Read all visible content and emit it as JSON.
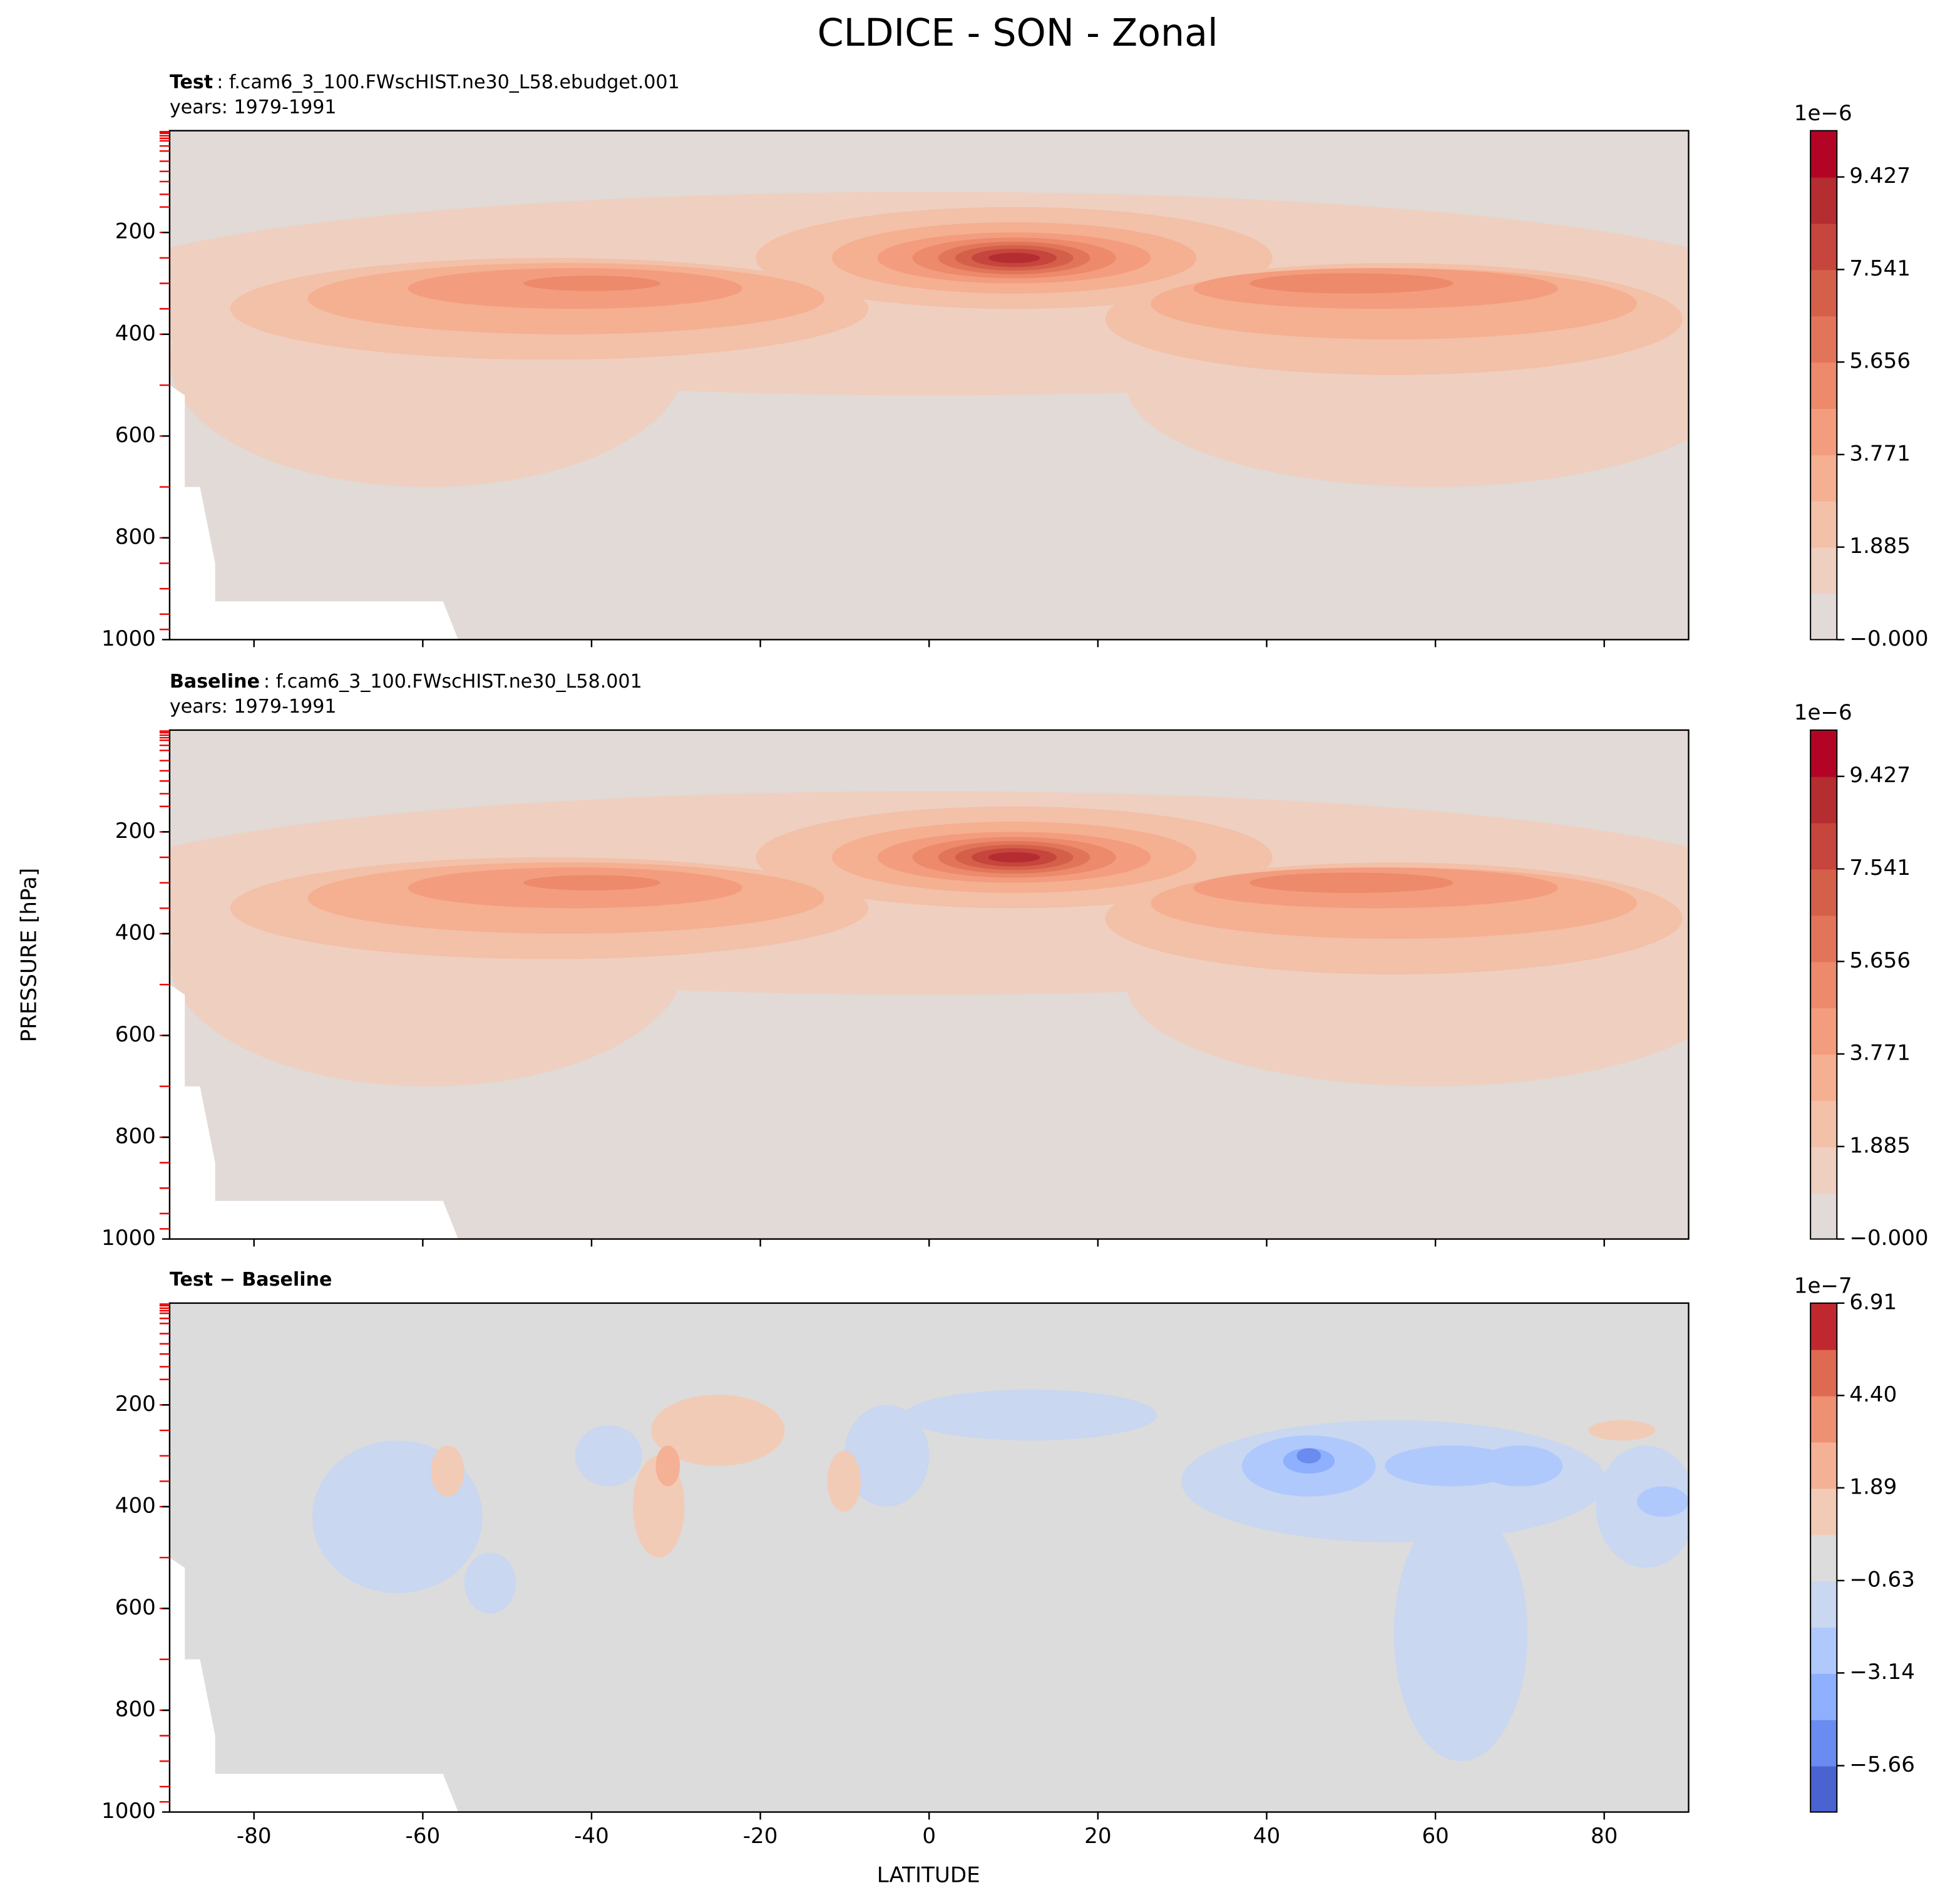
{
  "title": "CLDICE - SON - Zonal",
  "ylabel": "PRESSURE [hPa]",
  "xlabel": "LATITUDE",
  "chart_data": [
    {
      "type": "contour",
      "label_bold": "Test",
      "label_text": ": f.cam6_3_100.FWscHIST.ne30_L58.ebudget.001",
      "subtitle": "years: 1979-1991",
      "xlim": [
        -90,
        90
      ],
      "xticks": [
        -80,
        -60,
        -40,
        -20,
        0,
        20,
        40,
        60,
        80
      ],
      "show_xtick_labels": false,
      "ylim": [
        1000,
        0
      ],
      "yticks": [
        200,
        400,
        600,
        800,
        1000
      ],
      "colorbar": {
        "offset": "1e−6",
        "lim": [
          0,
          10.37
        ],
        "ticks": [
          {
            "value": 0,
            "label": "−0.000"
          },
          1.885,
          3.771,
          5.656,
          7.541,
          9.427
        ],
        "colors": [
          "#e1dad6",
          "#efcfbf",
          "#f3c0a8",
          "#f5af91",
          "#f39d7e",
          "#ec8a6b",
          "#e27559",
          "#d5604a",
          "#c6453c",
          "#b52c31",
          "#b40426"
        ]
      }
    },
    {
      "type": "contour",
      "label_bold": "Baseline",
      "label_text": ": f.cam6_3_100.FWscHIST.ne30_L58.001",
      "subtitle": "years: 1979-1991",
      "xlim": [
        -90,
        90
      ],
      "xticks": [
        -80,
        -60,
        -40,
        -20,
        0,
        20,
        40,
        60,
        80
      ],
      "show_xtick_labels": false,
      "ylim": [
        1000,
        0
      ],
      "yticks": [
        200,
        400,
        600,
        800,
        1000
      ],
      "colorbar": {
        "offset": "1e−6",
        "lim": [
          0,
          10.37
        ],
        "ticks": [
          {
            "value": 0,
            "label": "−0.000"
          },
          1.885,
          3.771,
          5.656,
          7.541,
          9.427
        ],
        "colors": [
          "#e1dad6",
          "#efcfbf",
          "#f3c0a8",
          "#f5af91",
          "#f39d7e",
          "#ec8a6b",
          "#e27559",
          "#d5604a",
          "#c6453c",
          "#b52c31",
          "#b40426"
        ]
      }
    },
    {
      "type": "contour-diff",
      "label_bold": "Test − Baseline",
      "xlim": [
        -90,
        90
      ],
      "xticks": [
        -80,
        -60,
        -40,
        -20,
        0,
        20,
        40,
        60,
        80
      ],
      "show_xtick_labels": true,
      "ylim": [
        1000,
        0
      ],
      "yticks": [
        200,
        400,
        600,
        800,
        1000
      ],
      "colorbar": {
        "offset": "1e−7",
        "lim": [
          -6.92,
          6.91
        ],
        "ticks": [
          6.91,
          {
            "value": 4.4,
            "label": "4.40"
          },
          1.89,
          {
            "value": -0.63,
            "label": "−0.63"
          },
          {
            "value": -3.14,
            "label": "−3.14"
          },
          {
            "value": -5.66,
            "label": "−5.66"
          }
        ],
        "colors": [
          "#4b62d1",
          "#6a8bef",
          "#8eb0fe",
          "#afc9fd",
          "#c9d7f0",
          "#dcdcdc",
          "#f2cbb7",
          "#f5b195",
          "#ee9173",
          "#de6a52",
          "#c0282f"
        ]
      }
    }
  ]
}
